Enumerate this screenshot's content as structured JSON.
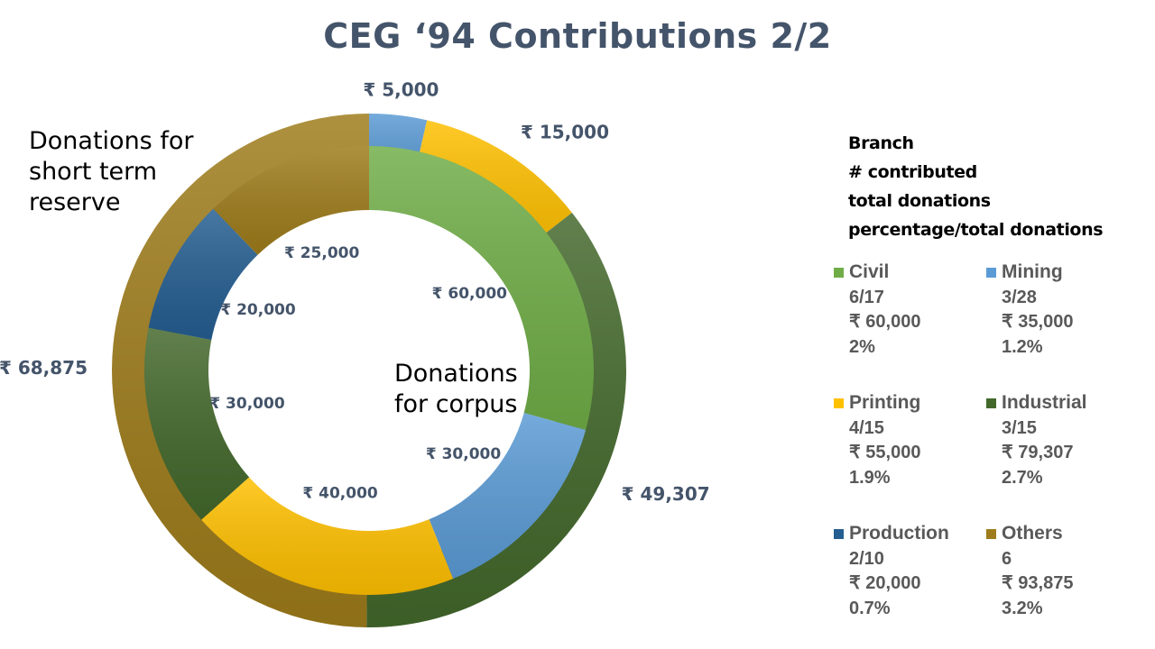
{
  "title": "CEG ‘94 Contributions 2/2",
  "annotations": {
    "outer": "Donations for short term reserve",
    "inner": "Donations for corpus"
  },
  "legend_header": [
    "Branch",
    "# contributed",
    "total donations",
    "percentage/total donations"
  ],
  "legend": [
    {
      "name": "Civil",
      "contributed": "6/17",
      "total": "₹ 60,000",
      "percent": "2%",
      "color": "#70ad47"
    },
    {
      "name": "Mining",
      "contributed": "3/28",
      "total": "₹ 35,000",
      "percent": "1.2%",
      "color": "#5b9bd5"
    },
    {
      "name": "Printing",
      "contributed": "4/15",
      "total": "₹ 55,000",
      "percent": "1.9%",
      "color": "#ffc000"
    },
    {
      "name": "Industrial",
      "contributed": "3/15",
      "total": "₹ 79,307",
      "percent": "2.7%",
      "color": "#43682b"
    },
    {
      "name": "Production",
      "contributed": "2/10",
      "total": "₹ 20,000",
      "percent": "0.7%",
      "color": "#255e91"
    },
    {
      "name": "Others",
      "contributed": "6",
      "total": "₹ 93,875",
      "percent": "3.2%",
      "color": "#9e7c1b"
    }
  ],
  "chart_data": {
    "type": "pie",
    "variant": "double-doughnut",
    "title": "CEG ‘94 Contributions 2/2",
    "rings": [
      {
        "ring": "outer",
        "annotation": "Donations for short term reserve",
        "slices": [
          {
            "category": "Mining",
            "value": 5000,
            "label": "₹ 5,000",
            "color": "#5b9bd5"
          },
          {
            "category": "Printing",
            "value": 15000,
            "label": "₹ 15,000",
            "color": "#ffc000"
          },
          {
            "category": "Industrial",
            "value": 49307,
            "label": "₹ 49,307",
            "color": "#43682b"
          },
          {
            "category": "Others",
            "value": 68875,
            "label": "₹ 68,875",
            "color": "#9e7c1b"
          }
        ]
      },
      {
        "ring": "inner",
        "annotation": "Donations for corpus",
        "slices": [
          {
            "category": "Civil",
            "value": 60000,
            "label": "₹ 60,000",
            "color": "#70ad47"
          },
          {
            "category": "Mining",
            "value": 30000,
            "label": "₹ 30,000",
            "color": "#5b9bd5"
          },
          {
            "category": "Printing",
            "value": 40000,
            "label": "₹ 40,000",
            "color": "#ffc000"
          },
          {
            "category": "Industrial",
            "value": 30000,
            "label": "₹ 30,000",
            "color": "#43682b"
          },
          {
            "category": "Production",
            "value": 20000,
            "label": "₹ 20,000",
            "color": "#255e91"
          },
          {
            "category": "Others",
            "value": 25000,
            "label": "₹ 25,000",
            "color": "#9e7c1b"
          }
        ]
      }
    ],
    "legend_placement": "right"
  }
}
